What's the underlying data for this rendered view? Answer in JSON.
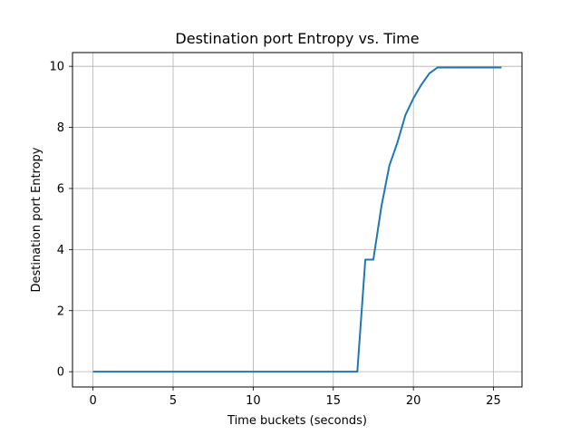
{
  "chart_data": {
    "type": "line",
    "title": "Destination port Entropy vs. Time",
    "xlabel": "Time buckets (seconds)",
    "ylabel": "Destination port Entropy",
    "xlim": [
      -1.28,
      26.78
    ],
    "ylim": [
      -0.5,
      10.45
    ],
    "xticks": [
      0,
      5,
      10,
      15,
      20,
      25
    ],
    "yticks": [
      0,
      2,
      4,
      6,
      8,
      10
    ],
    "grid": true,
    "series": [
      {
        "color": "#1f77b4",
        "x": [
          0,
          1,
          2,
          3,
          4,
          5,
          6,
          7,
          8,
          9,
          10,
          11,
          12,
          13,
          14,
          15,
          16,
          16.5,
          17,
          17.5,
          18,
          18.5,
          19,
          19.5,
          20,
          20.5,
          21,
          21.5,
          22,
          22.5,
          23,
          23.5,
          24,
          24.5,
          25,
          25.5
        ],
        "y": [
          0,
          0,
          0,
          0,
          0,
          0,
          0,
          0,
          0,
          0,
          0,
          0,
          0,
          0,
          0,
          0,
          0,
          0,
          3.67,
          3.67,
          5.4,
          6.75,
          7.5,
          8.4,
          8.95,
          9.4,
          9.77,
          9.96,
          9.96,
          9.96,
          9.96,
          9.96,
          9.96,
          9.96,
          9.96,
          9.96
        ]
      }
    ]
  }
}
